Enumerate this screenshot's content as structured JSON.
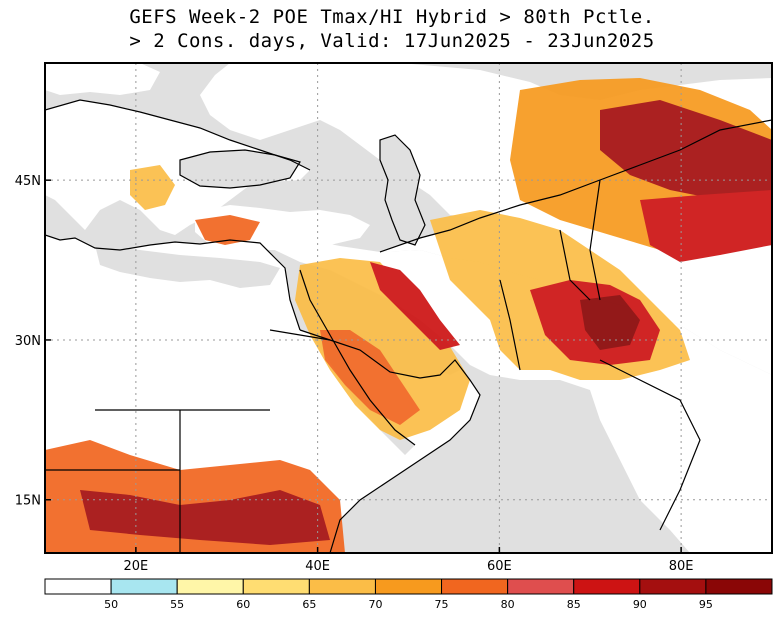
{
  "title": {
    "line1": "GEFS Week-2 POE Tmax/HI Hybrid > 80th Pctle.",
    "line2": "> 2 Cons. days, Valid: 17Jun2025 - 23Jun2025"
  },
  "map": {
    "lon_range": [
      10,
      90
    ],
    "lat_range": [
      10,
      56
    ],
    "x_ticks": [
      "20E",
      "40E",
      "60E",
      "80E"
    ],
    "x_tick_values": [
      20,
      40,
      60,
      80
    ],
    "y_ticks": [
      "45N",
      "30N",
      "15N"
    ],
    "y_tick_values": [
      45,
      30,
      15
    ],
    "land_color": "#ffffff",
    "ocean_color": "#e0e0e0",
    "grid": "dotted"
  },
  "colorbar": {
    "labels": [
      "50",
      "55",
      "60",
      "65",
      "70",
      "75",
      "80",
      "85",
      "90",
      "95"
    ],
    "colors": [
      "#ffffff",
      "#a8e6f0",
      "#fff6a8",
      "#ffdd72",
      "#fbbd47",
      "#f79a1e",
      "#f1661f",
      "#df4e4e",
      "#cd1313",
      "#a40f0f",
      "#8a0606"
    ]
  }
}
